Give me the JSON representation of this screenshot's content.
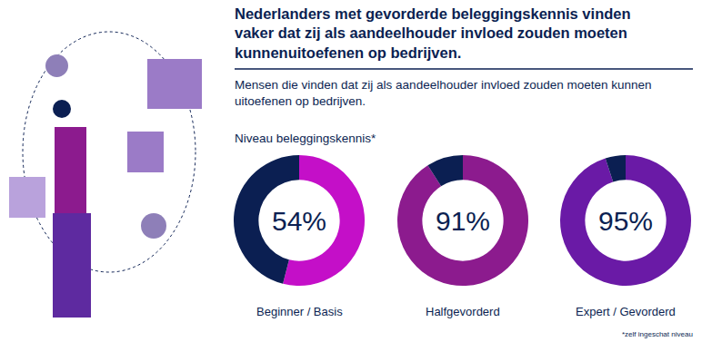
{
  "header": {
    "title": "Nederlanders met gevorderde beleggingskennis vinden\nvaker dat zij als aandeelhouder invloed zouden moeten\nkunnenuitoefenen op bedrijven.",
    "subtitle": "Mensen die vinden dat zij als aandeelhouder invloed zouden moeten kunnen\nuitoefenen op bedrijven.",
    "label": "Niveau beleggingskennis*",
    "footnote": "*zelf ingeschat niveau"
  },
  "chart_data": [
    {
      "type": "pie",
      "title": "Beginner / Basis",
      "values": [
        54,
        46
      ],
      "value_labels": [
        "54%",
        null
      ],
      "colors": [
        "#c40fc8",
        "#0b1f52"
      ],
      "data_labels": true
    },
    {
      "type": "pie",
      "title": "Halfgevorderd",
      "values": [
        91,
        9
      ],
      "value_labels": [
        "91%",
        null
      ],
      "colors": [
        "#8c1b8e",
        "#0b1f52"
      ],
      "data_labels": true
    },
    {
      "type": "pie",
      "title": "Expert / Gevorderd",
      "values": [
        95,
        5
      ],
      "value_labels": [
        "95%",
        null
      ],
      "colors": [
        "#6a1aa6",
        "#0b1f52"
      ],
      "data_labels": true
    }
  ]
}
